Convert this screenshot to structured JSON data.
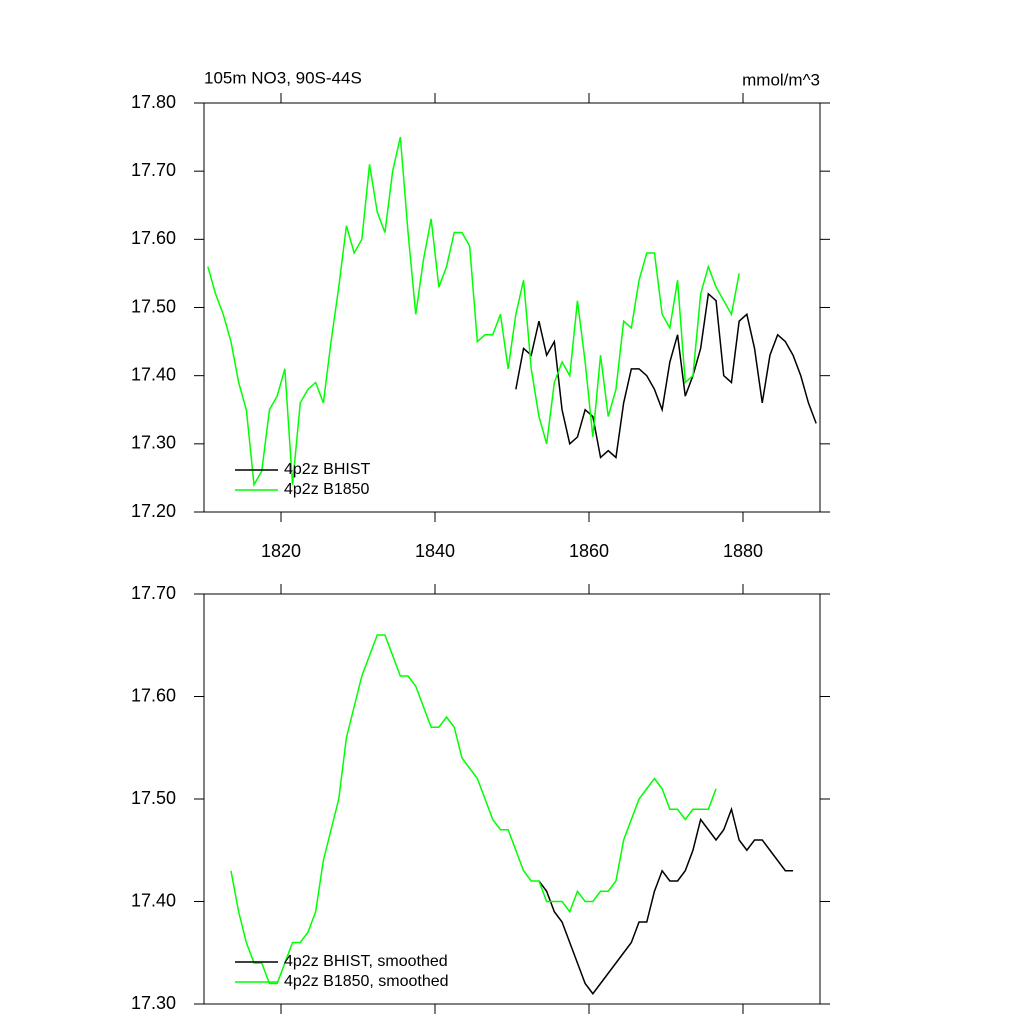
{
  "chart_data": [
    {
      "type": "line",
      "title": "105m NO3, 90S-44S",
      "units_label": "mmol/m^3",
      "x": [
        1810.5,
        1811.5,
        1812.5,
        1813.5,
        1814.5,
        1815.5,
        1816.5,
        1817.5,
        1818.5,
        1819.5,
        1820.5,
        1821.5,
        1822.5,
        1823.5,
        1824.5,
        1825.5,
        1826.5,
        1827.5,
        1828.5,
        1829.5,
        1830.5,
        1831.5,
        1832.5,
        1833.5,
        1834.5,
        1835.5,
        1836.5,
        1837.5,
        1838.5,
        1839.5,
        1840.5,
        1841.5,
        1842.5,
        1843.5,
        1844.5,
        1845.5,
        1846.5,
        1847.5,
        1848.5,
        1849.5,
        1850.5,
        1851.5,
        1852.5,
        1853.5,
        1854.5,
        1855.5,
        1856.5,
        1857.5,
        1858.5,
        1859.5,
        1860.5,
        1861.5,
        1862.5,
        1863.5,
        1864.5,
        1865.5,
        1866.5,
        1867.5,
        1868.5,
        1869.5,
        1870.5,
        1871.5,
        1872.5,
        1873.5,
        1874.5,
        1875.5,
        1876.5,
        1877.5,
        1878.5,
        1879.5,
        1880.5,
        1881.5,
        1882.5,
        1883.5,
        1884.5,
        1885.5,
        1886.5,
        1887.5,
        1888.5,
        1889.5
      ],
      "series": [
        {
          "name": "4p2z BHIST",
          "color": "#000000",
          "values": [
            null,
            null,
            null,
            null,
            null,
            null,
            null,
            null,
            null,
            null,
            null,
            null,
            null,
            null,
            null,
            null,
            null,
            null,
            null,
            null,
            null,
            null,
            null,
            null,
            null,
            null,
            null,
            null,
            null,
            null,
            null,
            null,
            null,
            null,
            null,
            null,
            null,
            null,
            null,
            null,
            17.38,
            17.44,
            17.43,
            17.48,
            17.43,
            17.45,
            17.35,
            17.3,
            17.31,
            17.35,
            17.34,
            17.28,
            17.29,
            17.28,
            17.36,
            17.41,
            17.41,
            17.4,
            17.38,
            17.35,
            17.42,
            17.46,
            17.37,
            17.4,
            17.44,
            17.52,
            17.51,
            17.4,
            17.39,
            17.48,
            17.49,
            17.44,
            17.36,
            17.43,
            17.46,
            17.45,
            17.43,
            17.4,
            17.36,
            17.33
          ]
        },
        {
          "name": "4p2z B1850",
          "color": "#00ff00",
          "values": [
            17.56,
            17.52,
            17.49,
            17.45,
            17.39,
            17.35,
            17.24,
            17.26,
            17.35,
            17.37,
            17.41,
            17.24,
            17.36,
            17.38,
            17.39,
            17.36,
            17.45,
            17.53,
            17.62,
            17.58,
            17.6,
            17.71,
            17.64,
            17.61,
            17.7,
            17.75,
            17.61,
            17.49,
            17.57,
            17.63,
            17.53,
            17.56,
            17.61,
            17.61,
            17.59,
            17.45,
            17.46,
            17.46,
            17.49,
            17.41,
            17.49,
            17.54,
            17.41,
            17.34,
            17.3,
            17.39,
            17.42,
            17.4,
            17.51,
            17.42,
            17.31,
            17.43,
            17.34,
            17.38,
            17.48,
            17.47,
            17.54,
            17.58,
            17.58,
            17.49,
            17.47,
            17.54,
            17.39,
            17.4,
            17.52,
            17.56,
            17.53,
            17.51,
            17.49,
            17.55,
            null,
            null,
            null,
            null,
            null,
            null,
            null,
            null,
            null,
            null
          ]
        }
      ],
      "xlim": [
        1810,
        1890
      ],
      "xticks": [
        1820,
        1840,
        1860,
        1880
      ],
      "ylim": [
        17.2,
        17.8
      ],
      "yticks": [
        {
          "value": 17.2,
          "label": "17.20"
        },
        {
          "value": 17.3,
          "label": "17.30"
        },
        {
          "value": 17.4,
          "label": "17.40"
        },
        {
          "value": 17.5,
          "label": "17.50"
        },
        {
          "value": 17.6,
          "label": "17.60"
        },
        {
          "value": 17.7,
          "label": "17.70"
        },
        {
          "value": 17.8,
          "label": "17.80"
        }
      ],
      "legend": "lower-left"
    },
    {
      "type": "line",
      "x": [
        1813.5,
        1814.5,
        1815.5,
        1816.5,
        1817.5,
        1818.5,
        1819.5,
        1820.5,
        1821.5,
        1822.5,
        1823.5,
        1824.5,
        1825.5,
        1826.5,
        1827.5,
        1828.5,
        1829.5,
        1830.5,
        1831.5,
        1832.5,
        1833.5,
        1834.5,
        1835.5,
        1836.5,
        1837.5,
        1838.5,
        1839.5,
        1840.5,
        1841.5,
        1842.5,
        1843.5,
        1844.5,
        1845.5,
        1846.5,
        1847.5,
        1848.5,
        1849.5,
        1850.5,
        1851.5,
        1852.5,
        1853.5,
        1854.5,
        1855.5,
        1856.5,
        1857.5,
        1858.5,
        1859.5,
        1860.5,
        1861.5,
        1862.5,
        1863.5,
        1864.5,
        1865.5,
        1866.5,
        1867.5,
        1868.5,
        1869.5,
        1870.5,
        1871.5,
        1872.5,
        1873.5,
        1874.5,
        1875.5,
        1876.5,
        1877.5,
        1878.5,
        1879.5,
        1880.5,
        1881.5,
        1882.5,
        1883.5,
        1884.5,
        1885.5,
        1886.5
      ],
      "series": [
        {
          "name": "4p2z BHIST, smoothed",
          "color": "#000000",
          "values": [
            null,
            null,
            null,
            null,
            null,
            null,
            null,
            null,
            null,
            null,
            null,
            null,
            null,
            null,
            null,
            null,
            null,
            null,
            null,
            null,
            null,
            null,
            null,
            null,
            null,
            null,
            null,
            null,
            null,
            null,
            null,
            null,
            null,
            null,
            null,
            null,
            null,
            null,
            null,
            null,
            17.42,
            17.41,
            17.39,
            17.38,
            17.36,
            17.34,
            17.32,
            17.31,
            17.32,
            17.33,
            17.34,
            17.35,
            17.36,
            17.38,
            17.38,
            17.41,
            17.43,
            17.42,
            17.42,
            17.43,
            17.45,
            17.48,
            17.47,
            17.46,
            17.47,
            17.49,
            17.46,
            17.45,
            17.46,
            17.46,
            17.45,
            17.44,
            17.43,
            17.43
          ]
        },
        {
          "name": "4p2z B1850, smoothed",
          "color": "#00ff00",
          "values": [
            17.43,
            17.39,
            17.36,
            17.34,
            17.34,
            17.32,
            17.32,
            17.34,
            17.36,
            17.36,
            17.37,
            17.39,
            17.44,
            17.47,
            17.5,
            17.56,
            17.59,
            17.62,
            17.64,
            17.66,
            17.66,
            17.64,
            17.62,
            17.62,
            17.61,
            17.59,
            17.57,
            17.57,
            17.58,
            17.57,
            17.54,
            17.53,
            17.52,
            17.5,
            17.48,
            17.47,
            17.47,
            17.45,
            17.43,
            17.42,
            17.42,
            17.4,
            17.4,
            17.4,
            17.39,
            17.41,
            17.4,
            17.4,
            17.41,
            17.41,
            17.42,
            17.46,
            17.48,
            17.5,
            17.51,
            17.52,
            17.51,
            17.49,
            17.49,
            17.48,
            17.49,
            17.49,
            17.49,
            17.51,
            null,
            null,
            null,
            null,
            null,
            null,
            null,
            null,
            null,
            null
          ]
        }
      ],
      "xlim": [
        1810,
        1890
      ],
      "xticks": [
        1820,
        1840,
        1860,
        1880
      ],
      "ylim": [
        17.3,
        17.7
      ],
      "yticks": [
        {
          "value": 17.3,
          "label": "17.30"
        },
        {
          "value": 17.4,
          "label": "17.40"
        },
        {
          "value": 17.5,
          "label": "17.50"
        },
        {
          "value": 17.6,
          "label": "17.60"
        },
        {
          "value": 17.7,
          "label": "17.70"
        }
      ],
      "legend": "lower-left"
    }
  ]
}
